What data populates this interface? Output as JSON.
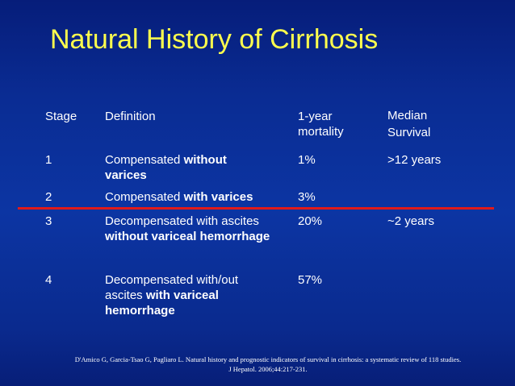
{
  "title": "Natural History of Cirrhosis",
  "table": {
    "headers": {
      "stage": "Stage",
      "definition": "Definition",
      "mortality_line1": "1-year",
      "mortality_line2": "mortality",
      "survival_line1": "Median",
      "survival_line2": "Survival"
    },
    "rows": [
      {
        "stage": "1",
        "def_plain": "Compensated ",
        "def_bold": "without varices",
        "def_plain2": "",
        "def_bold2": "",
        "mortality": "1%",
        "survival": ">12 years"
      },
      {
        "stage": "2",
        "def_plain": "Compensated ",
        "def_bold": "with varices",
        "def_plain2": "",
        "def_bold2": "",
        "mortality": "3%",
        "survival": ""
      },
      {
        "stage": "3",
        "def_plain": "Decompensated with ascites ",
        "def_bold": "without variceal hemorrhage",
        "def_plain2": "",
        "def_bold2": "",
        "mortality": "20%",
        "survival": "~2 years"
      },
      {
        "stage": "4",
        "def_plain": "Decompensated with/out ascites ",
        "def_bold": "with variceal hemorrhage",
        "def_plain2": "",
        "def_bold2": "",
        "mortality": "57%",
        "survival": ""
      }
    ]
  },
  "citation_line1": "D'Amico G, Garcia-Tsao G, Pagliaro L.  Natural history and prognostic indicators of survival in cirrhosis:  a systematic review of 118 studies.",
  "citation_line2": "J Hepatol. 2006;44:217-231.",
  "colors": {
    "background": "#0c35a3",
    "title": "#ffff4d",
    "text": "#ffffff",
    "divider": "#e11a1a"
  }
}
